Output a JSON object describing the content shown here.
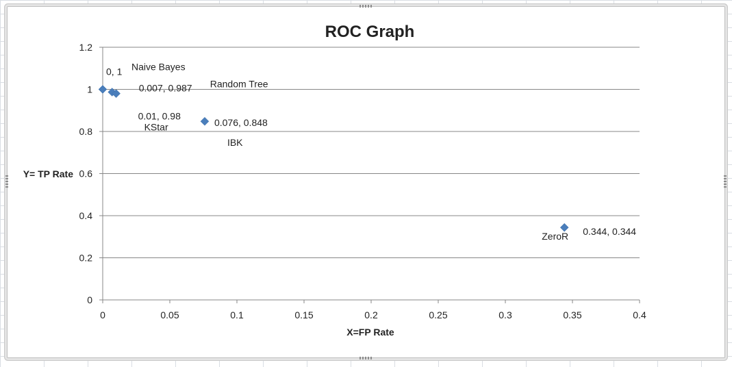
{
  "chart_data": {
    "type": "scatter",
    "title": "ROC Graph",
    "xlabel": "X=FP Rate",
    "ylabel": "Y= TP Rate",
    "xlim": [
      0,
      0.4
    ],
    "ylim": [
      0,
      1.2
    ],
    "x_ticks": [
      "0",
      "0.05",
      "0.1",
      "0.15",
      "0.2",
      "0.25",
      "0.3",
      "0.35",
      "0.4"
    ],
    "y_ticks": [
      "0",
      "0.2",
      "0.4",
      "0.6",
      "0.8",
      "1",
      "1.2"
    ],
    "grid": "horizontal",
    "marker": "diamond",
    "color": "#4a7ebb",
    "points": [
      {
        "x": 0,
        "y": 1,
        "value_label": "0, 1",
        "name": "Naive Bayes"
      },
      {
        "x": 0.007,
        "y": 0.987,
        "value_label": "0.007, 0.987",
        "name": "Random Tree"
      },
      {
        "x": 0.01,
        "y": 0.98,
        "value_label": "0.01, 0.98",
        "name": "KStar"
      },
      {
        "x": 0.076,
        "y": 0.848,
        "value_label": "0.076, 0.848",
        "name": "IBK"
      },
      {
        "x": 0.344,
        "y": 0.344,
        "value_label": "0.344, 0.344",
        "name": "ZeroR"
      }
    ]
  }
}
